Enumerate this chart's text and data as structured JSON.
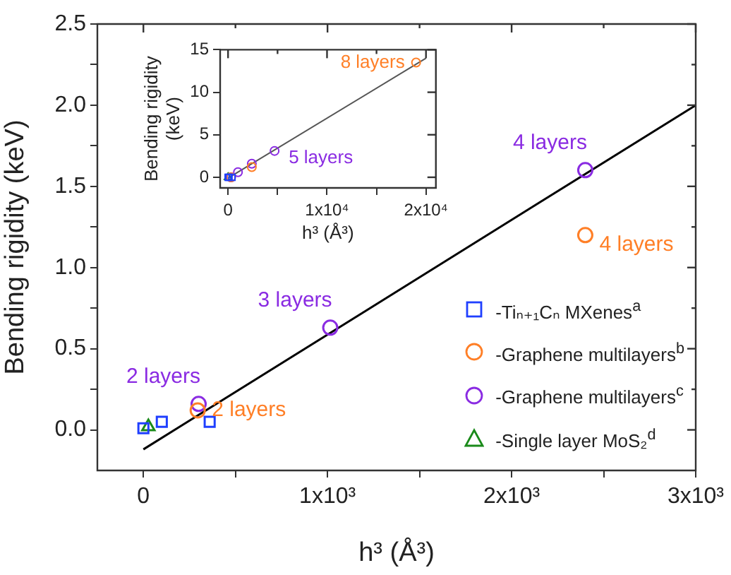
{
  "chart_data": [
    {
      "type": "scatter",
      "xlabel": "h³ (Å³)",
      "ylabel": "Bending rigidity (keV)",
      "xlim": [
        -250,
        3000
      ],
      "ylim": [
        -0.25,
        2.5
      ],
      "xticks": [
        0,
        {
          "value": 500,
          "label": null
        },
        {
          "value": 1000,
          "label": "1x10³"
        },
        {
          "value": 1500,
          "label": null
        },
        {
          "value": 2000,
          "label": "2x10³"
        },
        {
          "value": 2500,
          "label": null
        },
        {
          "value": 3000,
          "label": "3x10³"
        }
      ],
      "yticks": [
        {
          "value": 0,
          "label": "0.0"
        },
        {
          "value": 0.25,
          "label": null
        },
        0.5,
        {
          "value": 0.75,
          "label": null
        },
        {
          "value": 1,
          "label": "1.0"
        },
        {
          "value": 1.25,
          "label": null
        },
        1.5,
        {
          "value": 1.75,
          "label": null
        },
        {
          "value": 2,
          "label": "2.0"
        },
        {
          "value": 2.25,
          "label": null
        },
        2.5
      ],
      "grid": false,
      "legend": "bottom right",
      "series": [
        {
          "type": "scatter",
          "name": "-Tiₙ₊₁Cₙ MXenes$^{a}$",
          "color": "#1f3fff",
          "marker": "square",
          "x": [
            0,
            100,
            360
          ],
          "values": [
            0.01,
            0.05,
            0.05
          ]
        },
        {
          "type": "scatter",
          "name": "-Graphene multilayers$^{b}$",
          "color": "#ff7f27",
          "marker": "circle",
          "x": [
            295,
            2400
          ],
          "values": [
            0.12,
            1.2
          ]
        },
        {
          "type": "scatter",
          "name": "-Graphene multilayers$^{c}$",
          "color": "#8a2be2",
          "marker": "circle",
          "x": [
            300,
            1015,
            2400
          ],
          "values": [
            0.16,
            0.63,
            1.6
          ]
        },
        {
          "type": "scatter",
          "name": "-Single layer MoS₂$^{d}$",
          "color": "#1a8a1a",
          "marker": "triangle",
          "x": [
            27
          ],
          "values": [
            0.02
          ]
        },
        {
          "type": "line",
          "color": "#000000",
          "marker": "none",
          "x": [
            0,
            3000
          ],
          "values": [
            -0.12,
            2.0
          ]
        }
      ],
      "annotations": [
        {
          "text": "2 layers",
          "x": 295,
          "y": 0.12
        },
        {
          "text": "4 layers",
          "x": 2400,
          "y": 1.2
        },
        {
          "text": "2 layers",
          "x": 300,
          "y": 0.16
        },
        {
          "text": "3 layers",
          "x": 1015,
          "y": 0.63
        },
        {
          "text": "4 layers",
          "x": 2400,
          "y": 1.6
        }
      ]
    },
    {
      "type": "scatter",
      "xlabel": "h³ (Å³)",
      "ylabel": "Bending rigidity (keV)",
      "xlim": [
        -800,
        21000
      ],
      "ylim": [
        -1.25,
        15
      ],
      "xticks": [
        0,
        {
          "value": 5000,
          "label": null
        },
        {
          "value": 10000,
          "label": "1x10⁴"
        },
        {
          "value": 15000,
          "label": null
        },
        {
          "value": 20000,
          "label": "2x10⁴"
        }
      ],
      "yticks": [
        0,
        5,
        10,
        15
      ],
      "grid": false,
      "series": [
        {
          "type": "scatter",
          "color": "#1f3fff",
          "marker": "square",
          "x": [
            0,
            100,
            400
          ],
          "values": [
            0,
            0,
            0
          ]
        },
        {
          "type": "scatter",
          "color": "#ff7f27",
          "marker": "circle",
          "x": [
            300,
            2400,
            19000
          ],
          "values": [
            0,
            1.2,
            13.5
          ]
        },
        {
          "type": "scatter",
          "color": "#8a2be2",
          "marker": "circle",
          "x": [
            300,
            1000,
            2400,
            4700
          ],
          "values": [
            0,
            0.6,
            1.6,
            3.1
          ]
        },
        {
          "type": "scatter",
          "color": "#1a8a1a",
          "marker": "triangle",
          "x": [
            0
          ],
          "values": [
            0
          ]
        },
        {
          "type": "line",
          "color": "#555555",
          "marker": "none",
          "x": [
            0,
            20000
          ],
          "values": [
            -0.1,
            14.0
          ]
        }
      ],
      "annotations": [
        {
          "text": "8 layers",
          "x": 19000,
          "y": 13.5
        },
        {
          "text": "5 layers",
          "x": 4700,
          "y": 3.1
        }
      ]
    }
  ]
}
